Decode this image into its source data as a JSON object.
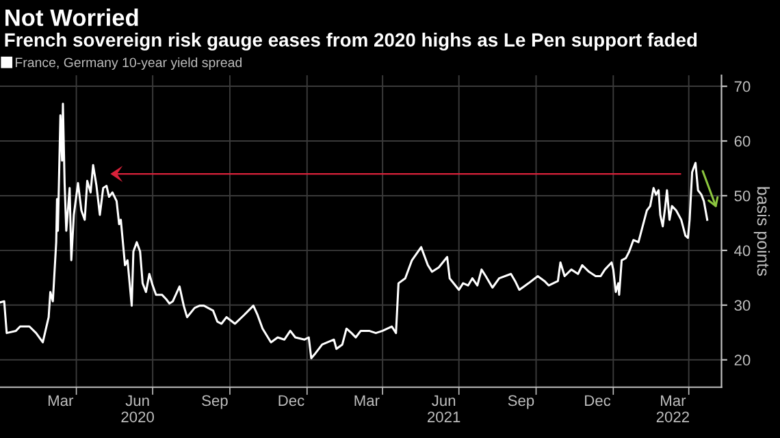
{
  "chart_data": {
    "type": "line",
    "title": "Not Worried",
    "subtitle": "French sovereign risk gauge eases from 2020 highs as Le Pen support faded",
    "ylabel": "basis points",
    "xlim": [
      "2020-01-01",
      "2022-05-10"
    ],
    "ylim": [
      15,
      72
    ],
    "yticks": [
      20,
      30,
      40,
      50,
      60,
      70
    ],
    "xticks": [
      {
        "value": "2020-03-13",
        "label": "Mar"
      },
      {
        "value": "2020-06-13",
        "label": "Jun\n2020"
      },
      {
        "value": "2020-09-13",
        "label": "Sep"
      },
      {
        "value": "2020-12-13",
        "label": "Dec"
      },
      {
        "value": "2021-03-13",
        "label": "Mar"
      },
      {
        "value": "2021-06-13",
        "label": "Jun\n2021"
      },
      {
        "value": "2021-09-13",
        "label": "Sep"
      },
      {
        "value": "2021-12-13",
        "label": "Dec"
      },
      {
        "value": "2022-03-13",
        "label": "Mar\n2022"
      },
      {
        "value": "2020-04-01",
        "label": null
      },
      {
        "value": "2020-07-01",
        "label": null
      },
      {
        "value": "2020-10-01",
        "label": null
      },
      {
        "value": "2021-01-01",
        "label": null
      },
      {
        "value": "2021-04-01",
        "label": null
      },
      {
        "value": "2021-07-01",
        "label": null
      },
      {
        "value": "2021-10-01",
        "label": null
      },
      {
        "value": "2022-01-01",
        "label": null
      },
      {
        "value": "2022-04-01",
        "label": null
      }
    ],
    "grid": true,
    "legend": "top left",
    "marker": "none",
    "line_style": "solid",
    "series": [
      {
        "name": "France, Germany 10-year yield spread",
        "color": "#ffffff",
        "x": [
          "2020-01-01",
          "2020-01-06",
          "2020-01-09",
          "2020-01-20",
          "2020-01-25",
          "2020-02-05",
          "2020-02-13",
          "2020-02-21",
          "2020-02-28",
          "2020-03-01",
          "2020-03-04",
          "2020-03-08",
          "2020-03-09",
          "2020-03-10",
          "2020-03-13",
          "2020-03-15",
          "2020-03-16",
          "2020-03-18",
          "2020-03-20",
          "2020-03-24",
          "2020-03-26",
          "2020-03-29",
          "2020-04-03",
          "2020-04-07",
          "2020-04-11",
          "2020-04-14",
          "2020-04-18",
          "2020-04-21",
          "2020-04-25",
          "2020-04-29",
          "2020-05-03",
          "2020-05-07",
          "2020-05-10",
          "2020-05-14",
          "2020-05-19",
          "2020-05-22",
          "2020-05-24",
          "2020-05-29",
          "2020-06-01",
          "2020-06-06",
          "2020-06-08",
          "2020-06-12",
          "2020-06-16",
          "2020-06-19",
          "2020-06-23",
          "2020-06-27",
          "2020-07-01",
          "2020-07-05",
          "2020-07-12",
          "2020-07-17",
          "2020-07-21",
          "2020-07-25",
          "2020-08-02",
          "2020-08-07",
          "2020-08-11",
          "2020-08-20",
          "2020-08-26",
          "2020-08-31",
          "2020-09-11",
          "2020-09-16",
          "2020-09-21",
          "2020-09-27",
          "2020-10-07",
          "2020-10-18",
          "2020-10-29",
          "2020-11-03",
          "2020-11-09",
          "2020-11-17",
          "2020-11-19",
          "2020-11-27",
          "2020-12-05",
          "2020-12-12",
          "2020-12-18",
          "2020-12-29",
          "2021-01-03",
          "2021-01-06",
          "2021-01-11",
          "2021-01-19",
          "2021-02-02",
          "2021-02-05",
          "2021-02-12",
          "2021-02-17",
          "2021-02-23",
          "2021-02-28",
          "2021-03-06",
          "2021-03-16",
          "2021-03-24",
          "2021-04-01",
          "2021-04-12",
          "2021-04-17",
          "2021-04-20",
          "2021-04-28",
          "2021-05-06",
          "2021-05-17",
          "2021-05-25",
          "2021-05-30",
          "2021-06-07",
          "2021-06-17",
          "2021-06-20",
          "2021-07-01",
          "2021-07-06",
          "2021-07-12",
          "2021-07-17",
          "2021-07-23",
          "2021-07-28",
          "2021-08-02",
          "2021-08-10",
          "2021-08-18",
          "2021-09-01",
          "2021-09-06",
          "2021-09-11",
          "2021-09-22",
          "2021-10-03",
          "2021-10-11",
          "2021-10-16",
          "2021-10-27",
          "2021-10-30",
          "2021-11-04",
          "2021-11-12",
          "2021-11-20",
          "2021-11-25",
          "2021-12-03",
          "2021-12-11",
          "2021-12-17",
          "2021-12-22",
          "2021-12-30",
          "2022-01-01",
          "2022-01-04",
          "2022-01-07",
          "2022-01-08",
          "2022-01-11",
          "2022-01-16",
          "2022-01-20",
          "2022-01-25",
          "2022-01-31",
          "2022-02-05",
          "2022-02-10",
          "2022-02-14",
          "2022-02-18",
          "2022-02-21",
          "2022-02-24",
          "2022-02-26",
          "2022-03-01",
          "2022-03-04",
          "2022-03-06",
          "2022-03-09",
          "2022-03-12",
          "2022-03-17",
          "2022-03-23",
          "2022-03-28",
          "2022-03-31",
          "2022-04-02",
          "2022-04-05",
          "2022-04-09",
          "2022-04-12",
          "2022-04-16",
          "2022-04-19",
          "2022-04-23"
        ],
        "values": [
          30.5,
          30.7,
          24.9,
          25.3,
          26.1,
          26.1,
          24.9,
          23.2,
          27.8,
          32.4,
          30.7,
          41.5,
          49.4,
          43.6,
          64.7,
          56.4,
          66.8,
          52.3,
          43.6,
          51.4,
          38.2,
          46.5,
          52.3,
          47.3,
          45.6,
          52.7,
          50.6,
          55.6,
          51.8,
          46.5,
          51.4,
          51.8,
          49.8,
          50.6,
          49.0,
          44.8,
          45.6,
          37.3,
          38.2,
          29.9,
          39.8,
          41.5,
          39.8,
          34.0,
          32.4,
          35.7,
          33.6,
          31.9,
          31.9,
          31.1,
          30.3,
          30.7,
          33.4,
          29.9,
          27.8,
          29.5,
          29.9,
          29.9,
          29.0,
          27.0,
          26.6,
          27.8,
          26.6,
          28.2,
          29.9,
          28.2,
          25.7,
          23.7,
          23.2,
          24.1,
          23.7,
          25.3,
          24.1,
          23.7,
          24.1,
          20.3,
          21.2,
          22.8,
          23.7,
          22.0,
          22.8,
          25.7,
          24.9,
          24.1,
          25.3,
          25.3,
          24.9,
          25.3,
          26.1,
          24.9,
          34.0,
          34.9,
          38.2,
          40.6,
          37.3,
          36.1,
          36.9,
          38.8,
          34.9,
          32.8,
          34.0,
          33.6,
          34.9,
          33.6,
          36.5,
          35.3,
          33.2,
          34.9,
          35.7,
          34.4,
          32.8,
          34.0,
          35.3,
          34.4,
          33.6,
          34.4,
          37.8,
          35.3,
          36.5,
          35.7,
          37.3,
          36.1,
          35.3,
          35.3,
          36.5,
          37.8,
          36.5,
          32.4,
          34.0,
          31.9,
          38.2,
          38.6,
          39.8,
          41.9,
          41.5,
          44.4,
          47.3,
          48.1,
          51.4,
          50.2,
          51.0,
          46.5,
          44.4,
          48.1,
          51.0,
          45.6,
          48.1,
          47.3,
          45.6,
          42.7,
          42.3,
          45.6,
          54.3,
          56.0,
          51.0,
          50.2,
          49.0,
          45.6
        ]
      }
    ]
  }
}
